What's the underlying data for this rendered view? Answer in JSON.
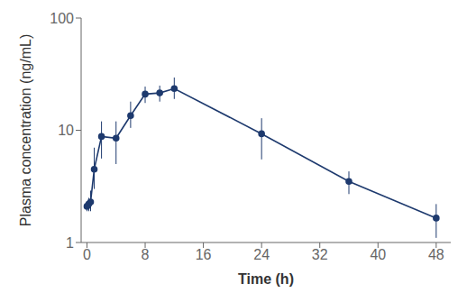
{
  "chart_data": {
    "type": "line",
    "x_label": "Time (h)",
    "y_label": "Plasma concentration (ng/mL)",
    "x": [
      0,
      0.25,
      0.5,
      1,
      2,
      4,
      6,
      8,
      10,
      12,
      24,
      36,
      48
    ],
    "series": [
      {
        "name": "Plasma concentration (ng/mL)",
        "color": "#1e3a6e",
        "marker": "o",
        "line_style": "solid",
        "values": [
          2.1,
          2.2,
          2.3,
          4.5,
          8.8,
          8.5,
          13.5,
          21.0,
          21.5,
          23.5,
          9.3,
          3.5,
          1.65
        ],
        "error_low": [
          0.2,
          0.3,
          0.4,
          1.5,
          3.2,
          3.5,
          3.0,
          3.5,
          3.5,
          4.5,
          3.8,
          0.8,
          0.55
        ],
        "error_high": [
          0.2,
          0.3,
          0.6,
          2.5,
          3.2,
          3.5,
          4.5,
          3.5,
          3.5,
          6.0,
          3.5,
          0.8,
          0.55
        ]
      }
    ],
    "xlim": [
      -0.8,
      50
    ],
    "ylim": [
      1,
      100
    ],
    "xticks": [
      0,
      8,
      16,
      24,
      32,
      40,
      48
    ],
    "yticks": [
      1,
      10,
      100
    ],
    "log": "y",
    "grid": false
  }
}
